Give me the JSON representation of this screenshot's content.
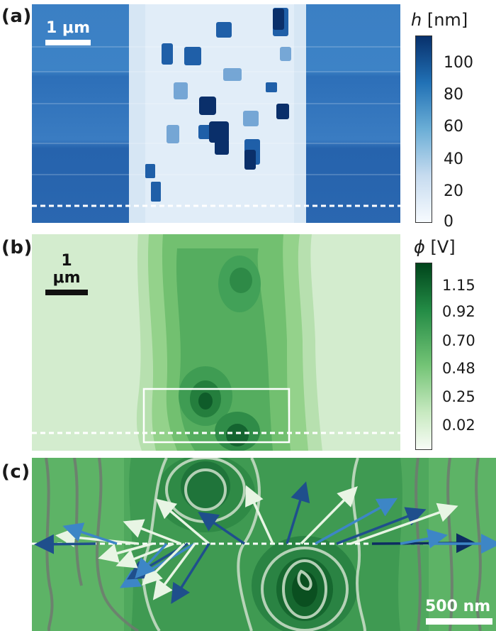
{
  "panels": {
    "a": {
      "label": "(a)",
      "scalebar": "1 μm",
      "colorbar": {
        "title": "h [nm]",
        "title_symbol": "h",
        "title_unit": "[nm]",
        "ticks": [
          "100",
          "80",
          "60",
          "40",
          "20",
          "0"
        ],
        "colormap": [
          "#f7fbff",
          "#c6dbef",
          "#6baed6",
          "#2171b5",
          "#08306b"
        ]
      }
    },
    "b": {
      "label": "(b)",
      "scalebar": "1 μm",
      "colorbar": {
        "title": "ϕ [V]",
        "title_symbol": "ϕ",
        "title_unit": "[V]",
        "ticks": [
          "1.15",
          "0.92",
          "0.70",
          "0.48",
          "0.25",
          "0.02"
        ],
        "colormap": [
          "#f7fcf5",
          "#c7e9c0",
          "#74c476",
          "#238b45",
          "#00441b"
        ]
      }
    },
    "c": {
      "label": "(c)",
      "scalebar": "500 nm"
    }
  }
}
